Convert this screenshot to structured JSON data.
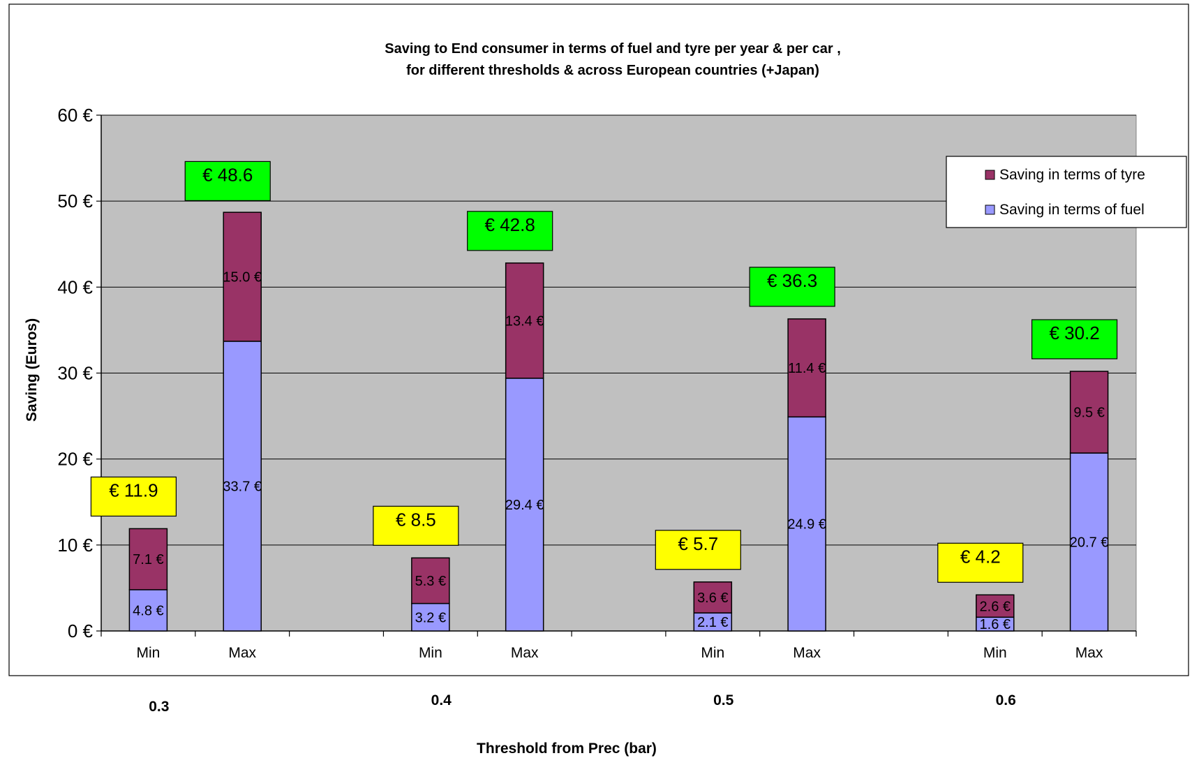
{
  "chart_data": {
    "type": "bar",
    "stacked": true,
    "title": "Saving to End consumer in terms of fuel and tyre per year & per car ,",
    "subtitle": "for different thresholds & across European countries (+Japan)",
    "ylabel": "Saving (Euros)",
    "xlabel": "Threshold from Prec (bar)",
    "ylim": [
      0,
      60
    ],
    "yticks": [
      0,
      10,
      20,
      30,
      40,
      50,
      60
    ],
    "ytick_labels": [
      "0 €",
      "10 €",
      "20 €",
      "30 €",
      "40 €",
      "50 €",
      "60 €"
    ],
    "grid": true,
    "legend_position": "top-right",
    "groups": [
      "0.3",
      "0.4",
      "0.5",
      "0.6"
    ],
    "categories": [
      "Min",
      "Max",
      "Min",
      "Max",
      "Min",
      "Max",
      "Min",
      "Max"
    ],
    "series": [
      {
        "name": "Saving in terms of fuel",
        "color": "#9999ff",
        "values": [
          4.8,
          33.7,
          3.2,
          29.4,
          2.1,
          24.9,
          1.6,
          20.7
        ],
        "labels": [
          "4.8 €",
          "33.7 €",
          "3.2 €",
          "29.4 €",
          "2.1 €",
          "24.9 €",
          "1.6 €",
          "20.7 €"
        ]
      },
      {
        "name": "Saving in terms of tyre",
        "color": "#993366",
        "values": [
          7.1,
          15.0,
          5.3,
          13.4,
          3.6,
          11.4,
          2.6,
          9.5
        ],
        "labels": [
          "7.1 €",
          "15.0 €",
          "5.3 €",
          "13.4 €",
          "3.6 €",
          "11.4 €",
          "2.6 €",
          "9.5 €"
        ]
      }
    ],
    "totals": [
      11.9,
      48.6,
      8.5,
      42.8,
      5.7,
      36.3,
      4.2,
      30.2
    ],
    "total_labels": [
      "€ 11.9",
      "€ 48.6",
      "€ 8.5",
      "€ 42.8",
      "€ 5.7",
      "€ 36.3",
      "€ 4.2",
      "€ 30.2"
    ],
    "total_box_colors": [
      "#ffff00",
      "#00ff00",
      "#ffff00",
      "#00ff00",
      "#ffff00",
      "#00ff00",
      "#ffff00",
      "#00ff00"
    ],
    "plot_background": "#c0c0c0"
  }
}
